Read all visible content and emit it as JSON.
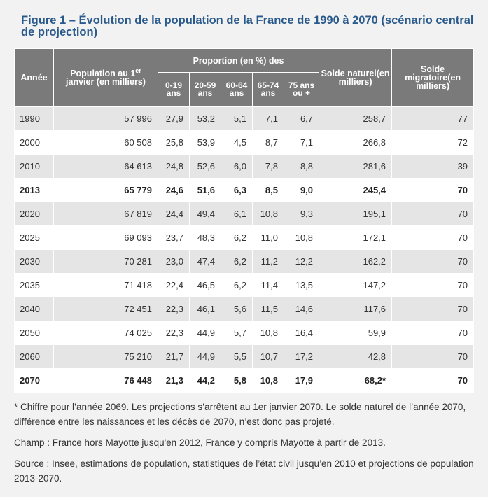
{
  "title": "Figure 1 – Évolution de la population de la France de 1990 à 2070 (scénario central de projection)",
  "headers": {
    "annee": "Année",
    "population_main": "Population au 1",
    "population_sup": "er",
    "population_rest": "janvier (en milliers)",
    "proportion_group": "Proportion (en %) des",
    "age_groups": [
      "0-19 ans",
      "20-59 ans",
      "60-64 ans",
      "65-74 ans",
      "75 ans ou +"
    ],
    "solde_naturel": "Solde naturel(en milliers)",
    "solde_migratoire": "Solde migratoire(en milliers)"
  },
  "rows": [
    {
      "annee": "1990",
      "population": "57 996",
      "p0_19": "27,9",
      "p20_59": "53,2",
      "p60_64": "5,1",
      "p65_74": "7,1",
      "p75": "6,7",
      "naturel": "258,7",
      "migratoire": "77",
      "bold": false
    },
    {
      "annee": "2000",
      "population": "60 508",
      "p0_19": "25,8",
      "p20_59": "53,9",
      "p60_64": "4,5",
      "p65_74": "8,7",
      "p75": "7,1",
      "naturel": "266,8",
      "migratoire": "72",
      "bold": false
    },
    {
      "annee": "2010",
      "population": "64 613",
      "p0_19": "24,8",
      "p20_59": "52,6",
      "p60_64": "6,0",
      "p65_74": "7,8",
      "p75": "8,8",
      "naturel": "281,6",
      "migratoire": "39",
      "bold": false
    },
    {
      "annee": "2013",
      "population": "65 779",
      "p0_19": "24,6",
      "p20_59": "51,6",
      "p60_64": "6,3",
      "p65_74": "8,5",
      "p75": "9,0",
      "naturel": "245,4",
      "migratoire": "70",
      "bold": true
    },
    {
      "annee": "2020",
      "population": "67 819",
      "p0_19": "24,4",
      "p20_59": "49,4",
      "p60_64": "6,1",
      "p65_74": "10,8",
      "p75": "9,3",
      "naturel": "195,1",
      "migratoire": "70",
      "bold": false
    },
    {
      "annee": "2025",
      "population": "69 093",
      "p0_19": "23,7",
      "p20_59": "48,3",
      "p60_64": "6,2",
      "p65_74": "11,0",
      "p75": "10,8",
      "naturel": "172,1",
      "migratoire": "70",
      "bold": false
    },
    {
      "annee": "2030",
      "population": "70 281",
      "p0_19": "23,0",
      "p20_59": "47,4",
      "p60_64": "6,2",
      "p65_74": "11,2",
      "p75": "12,2",
      "naturel": "162,2",
      "migratoire": "70",
      "bold": false
    },
    {
      "annee": "2035",
      "population": "71 418",
      "p0_19": "22,4",
      "p20_59": "46,5",
      "p60_64": "6,2",
      "p65_74": "11,4",
      "p75": "13,5",
      "naturel": "147,2",
      "migratoire": "70",
      "bold": false
    },
    {
      "annee": "2040",
      "population": "72 451",
      "p0_19": "22,3",
      "p20_59": "46,1",
      "p60_64": "5,6",
      "p65_74": "11,5",
      "p75": "14,6",
      "naturel": "117,6",
      "migratoire": "70",
      "bold": false
    },
    {
      "annee": "2050",
      "population": "74 025",
      "p0_19": "22,3",
      "p20_59": "44,9",
      "p60_64": "5,7",
      "p65_74": "10,8",
      "p75": "16,4",
      "naturel": "59,9",
      "migratoire": "70",
      "bold": false
    },
    {
      "annee": "2060",
      "population": "75 210",
      "p0_19": "21,7",
      "p20_59": "44,9",
      "p60_64": "5,5",
      "p65_74": "10,7",
      "p75": "17,2",
      "naturel": "42,8",
      "migratoire": "70",
      "bold": false
    },
    {
      "annee": "2070",
      "population": "76 448",
      "p0_19": "21,3",
      "p20_59": "44,2",
      "p60_64": "5,8",
      "p65_74": "10,8",
      "p75": "17,9",
      "naturel": "68,2*",
      "migratoire": "70",
      "bold": true
    }
  ],
  "notes": [
    "* Chiffre pour l’année 2069. Les projections s’arrêtent au 1er janvier 2070. Le solde naturel de l’année 2070, différence entre les naissances et les décès de 2070, n’est donc pas projeté.",
    "Champ : France hors Mayotte jusqu'en 2012, France y compris Mayotte à partir de 2013.",
    "Source : Insee, estimations de population, statistiques de l’état civil jusqu’en 2010 et projections de population 2013-2070."
  ],
  "colors": {
    "title": "#2a5a8c",
    "header_bg": "#7a7a7a",
    "row_even": "#e5e5e5",
    "row_odd": "#ffffff",
    "page_bg": "#f2f2f2"
  }
}
